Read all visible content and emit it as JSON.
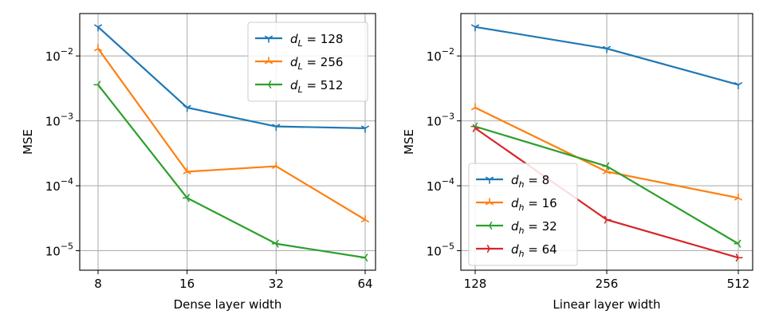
{
  "chart_data": [
    {
      "type": "line",
      "xscale": "log2",
      "yscale": "log",
      "xlabel": "Dense layer width",
      "ylabel": "MSE",
      "x": [
        8,
        16,
        32,
        64
      ],
      "xticks": [
        "8",
        "16",
        "32",
        "64"
      ],
      "ylim": [
        5e-06,
        0.045
      ],
      "yticks": [
        {
          "base": "10",
          "exp": "−5",
          "value": 1e-05
        },
        {
          "base": "10",
          "exp": "−4",
          "value": 0.0001
        },
        {
          "base": "10",
          "exp": "−3",
          "value": 0.001
        },
        {
          "base": "10",
          "exp": "−2",
          "value": 0.01
        }
      ],
      "grid": true,
      "legend_position": "top-right",
      "series": [
        {
          "name": "d_L = 128",
          "var": "d",
          "sub": "L",
          "val": "128",
          "color": "#1f77b4",
          "marker": "tri_down",
          "values": [
            0.028,
            0.0016,
            0.00082,
            0.00077
          ]
        },
        {
          "name": "d_L = 256",
          "var": "d",
          "sub": "L",
          "val": "256",
          "color": "#ff7f0e",
          "marker": "tri_up",
          "values": [
            0.013,
            0.000165,
            0.0002,
            3e-05
          ]
        },
        {
          "name": "d_L = 512",
          "var": "d",
          "sub": "L",
          "val": "512",
          "color": "#2ca02c",
          "marker": "tri_left",
          "values": [
            0.0036,
            6.5e-05,
            1.28e-05,
            7.8e-06
          ]
        }
      ]
    },
    {
      "type": "line",
      "xscale": "log2",
      "yscale": "log",
      "xlabel": "Linear layer width",
      "ylabel": "MSE",
      "x": [
        128,
        256,
        512
      ],
      "xticks": [
        "128",
        "256",
        "512"
      ],
      "ylim": [
        5e-06,
        0.045
      ],
      "yticks": [
        {
          "base": "10",
          "exp": "−5",
          "value": 1e-05
        },
        {
          "base": "10",
          "exp": "−4",
          "value": 0.0001
        },
        {
          "base": "10",
          "exp": "−3",
          "value": 0.001
        },
        {
          "base": "10",
          "exp": "−2",
          "value": 0.01
        }
      ],
      "grid": true,
      "legend_position": "bottom-left",
      "series": [
        {
          "name": "d_h = 8",
          "var": "d",
          "sub": "h",
          "val": "8",
          "color": "#1f77b4",
          "marker": "tri_down",
          "values": [
            0.028,
            0.013,
            0.0036
          ]
        },
        {
          "name": "d_h = 16",
          "var": "d",
          "sub": "h",
          "val": "16",
          "color": "#ff7f0e",
          "marker": "tri_up",
          "values": [
            0.0016,
            0.000165,
            6.5e-05
          ]
        },
        {
          "name": "d_h = 32",
          "var": "d",
          "sub": "h",
          "val": "32",
          "color": "#2ca02c",
          "marker": "tri_left",
          "values": [
            0.00082,
            0.0002,
            1.28e-05
          ]
        },
        {
          "name": "d_h = 64",
          "var": "d",
          "sub": "h",
          "val": "64",
          "color": "#d62728",
          "marker": "tri_right",
          "values": [
            0.00077,
            3e-05,
            7.8e-06
          ]
        }
      ]
    }
  ]
}
